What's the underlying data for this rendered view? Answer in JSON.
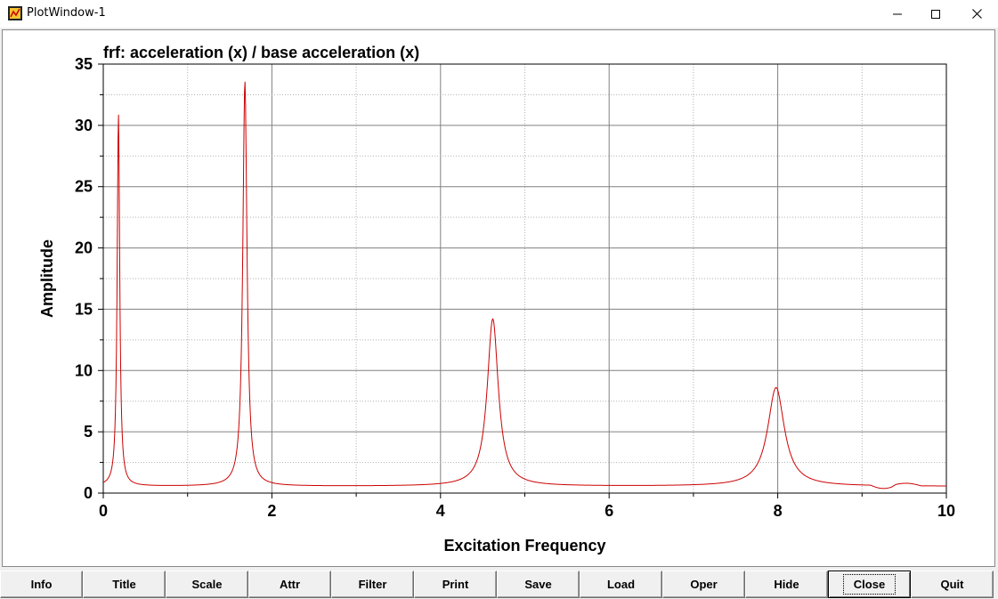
{
  "window": {
    "title": "PlotWindow-1",
    "icons": [
      "app-icon",
      "minimize-icon",
      "maximize-icon",
      "close-icon"
    ]
  },
  "chart_data": {
    "type": "line",
    "title": "frf: acceleration (x) / base acceleration (x)",
    "xlabel": "Excitation Frequency",
    "ylabel": "Amplitude",
    "xlim": [
      0,
      10
    ],
    "ylim": [
      0,
      35
    ],
    "xticks": [
      "0",
      "2",
      "4",
      "6",
      "8",
      "10"
    ],
    "yticks": [
      "0",
      "5",
      "10",
      "15",
      "20",
      "25",
      "30",
      "35"
    ],
    "grid": true,
    "series": [
      {
        "color": "#cc0000",
        "peaks": [
          {
            "x": 0.18,
            "y": 31.0
          },
          {
            "x": 1.68,
            "y": 33.6
          },
          {
            "x": 4.62,
            "y": 14.2
          },
          {
            "x": 7.98,
            "y": 8.6
          }
        ],
        "x": [
          0.0,
          0.1,
          0.15,
          0.18,
          0.21,
          0.3,
          0.6,
          1.0,
          1.4,
          1.6,
          1.68,
          1.76,
          2.0,
          3.0,
          4.0,
          4.4,
          4.62,
          4.85,
          5.5,
          7.0,
          7.7,
          7.98,
          8.3,
          9.0,
          9.3,
          9.45,
          9.6,
          10.0
        ],
        "y": [
          0.9,
          2.0,
          8.0,
          31.0,
          6.0,
          1.4,
          0.7,
          0.9,
          2.2,
          6.5,
          33.6,
          7.0,
          1.2,
          0.6,
          1.3,
          3.5,
          14.2,
          3.2,
          0.9,
          0.8,
          2.5,
          8.6,
          2.6,
          0.8,
          0.5,
          0.8,
          0.7,
          0.8
        ]
      }
    ]
  },
  "buttons": [
    {
      "label": "Info"
    },
    {
      "label": "Title"
    },
    {
      "label": "Scale"
    },
    {
      "label": "Attr"
    },
    {
      "label": "Filter"
    },
    {
      "label": "Print"
    },
    {
      "label": "Save"
    },
    {
      "label": "Load"
    },
    {
      "label": "Oper"
    },
    {
      "label": "Hide"
    },
    {
      "label": "Close",
      "focused": true
    },
    {
      "label": "Quit"
    }
  ]
}
